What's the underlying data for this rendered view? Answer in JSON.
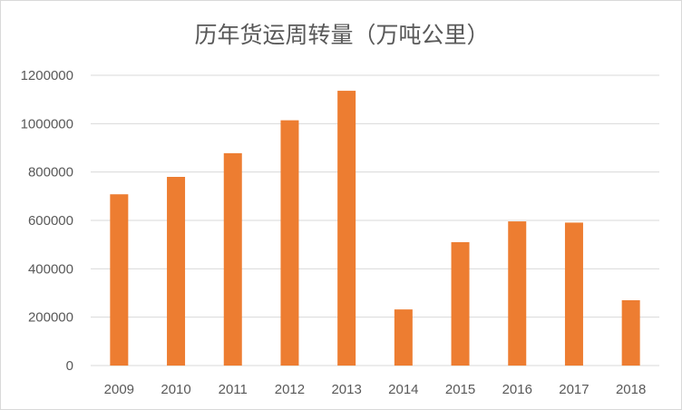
{
  "chart_data": {
    "type": "bar",
    "title": "历年货运周转量（万吨公里）",
    "categories": [
      "2009",
      "2010",
      "2011",
      "2012",
      "2013",
      "2014",
      "2015",
      "2016",
      "2017",
      "2018"
    ],
    "series": [
      {
        "values": [
          708000,
          780000,
          878000,
          1014000,
          1136000,
          232000,
          510000,
          596000,
          591000,
          270000
        ],
        "color": "#ED7D31"
      }
    ],
    "ylim": [
      0,
      1200000
    ],
    "yticks": [
      "0",
      "200000",
      "400000",
      "600000",
      "800000",
      "1000000",
      "1200000"
    ],
    "grid": true,
    "legend": "none",
    "xlabel": "",
    "ylabel": ""
  }
}
